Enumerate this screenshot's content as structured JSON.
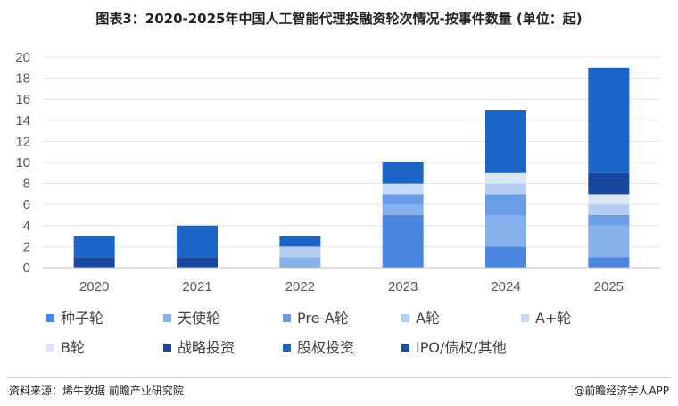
{
  "title": "图表3：2020-2025年中国人工智能代理投融资轮次情况-按事件数量 (单位：起)",
  "source": "资料来源：烯牛数据 前瞻产业研究院",
  "brand": "@前瞻经济学人APP",
  "chart_data": {
    "type": "bar",
    "stacked": true,
    "categories": [
      "2020",
      "2021",
      "2022",
      "2023",
      "2024",
      "2025"
    ],
    "ylim": [
      0,
      20
    ],
    "yticks": [
      0,
      2,
      4,
      6,
      8,
      10,
      12,
      14,
      16,
      18,
      20
    ],
    "grid": true,
    "legend_position": "bottom",
    "series": [
      {
        "name": "种子轮",
        "color": "#4a86e0",
        "values": [
          0,
          0,
          0,
          5,
          2,
          1
        ]
      },
      {
        "name": "天使轮",
        "color": "#86b0ea",
        "values": [
          0,
          0,
          1,
          1,
          3,
          3
        ]
      },
      {
        "name": "Pre-A轮",
        "color": "#6a9de6",
        "values": [
          0,
          0,
          0,
          1,
          2,
          1
        ]
      },
      {
        "name": "A轮",
        "color": "#b4cff2",
        "values": [
          0,
          0,
          1,
          0,
          1,
          1
        ]
      },
      {
        "name": "A+轮",
        "color": "#c6daf5",
        "values": [
          0,
          0,
          0,
          1,
          0,
          0
        ]
      },
      {
        "name": "B轮",
        "color": "#d9e6f8",
        "values": [
          0,
          0,
          0,
          0,
          1,
          1
        ]
      },
      {
        "name": "战略投资",
        "color": "#17479e",
        "values": [
          1,
          1,
          0,
          0,
          0,
          2
        ]
      },
      {
        "name": "股权投资",
        "color": "#1c64c8",
        "values": [
          2,
          3,
          1,
          2,
          6,
          10
        ]
      },
      {
        "name": "IPO/债权/其他",
        "color": "#1f4f9e",
        "values": [
          0,
          0,
          0,
          0,
          0,
          0
        ]
      }
    ]
  }
}
